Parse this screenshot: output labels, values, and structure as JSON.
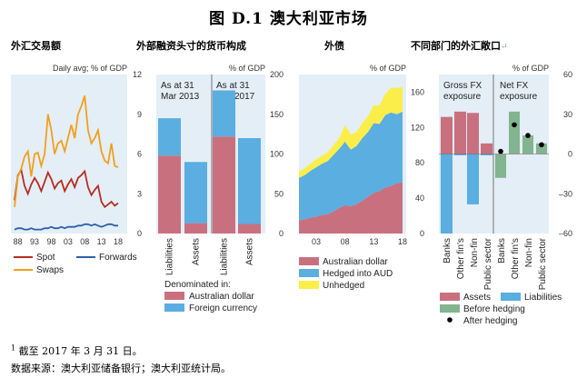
{
  "title": "图 D.1 澳大利亚市场",
  "headers": [
    "外汇交易额",
    "外部融资头寸的货币构成",
    "外债",
    "不同部门的外汇敞口"
  ],
  "header_mark": "↵",
  "footnote": "截至 2017 年 3 月 31 日。",
  "footnote_marker": "1",
  "source": "数据来源：澳大利亚储备银行；澳大利亚统计局。",
  "colors": {
    "spot": "#b52d1f",
    "swaps": "#f0a01c",
    "forwards": "#2f5fa8",
    "panel_bg": "#e4eef7",
    "rose": "#c9707f",
    "blue": "#5aaee0",
    "yellow": "#fbee4b",
    "green": "#82b48f",
    "dot": "#000000"
  },
  "chart_data": [
    {
      "type": "line",
      "unit_label": "Daily avg; % of GDP",
      "x": [
        1987,
        1988,
        1989,
        1990,
        1991,
        1992,
        1993,
        1994,
        1995,
        1996,
        1997,
        1998,
        1999,
        2000,
        2001,
        2002,
        2003,
        2004,
        2005,
        2006,
        2007,
        2008,
        2009,
        2010,
        2011,
        2012,
        2013,
        2014,
        2015,
        2016,
        2017,
        2018
      ],
      "xticks": [
        "88",
        "93",
        "98",
        "03",
        "08",
        "13",
        "18"
      ],
      "ylim": [
        0,
        12
      ],
      "yticks": [
        0,
        3,
        6,
        9,
        12
      ],
      "series": [
        {
          "name": "Spot",
          "values": [
            2.5,
            4.4,
            4.8,
            3.6,
            3.0,
            3.7,
            4.2,
            3.8,
            3.2,
            3.9,
            4.6,
            4.1,
            3.4,
            3.8,
            4.0,
            3.2,
            3.7,
            4.1,
            3.5,
            4.2,
            4.4,
            4.7,
            3.5,
            2.9,
            3.3,
            3.6,
            2.4,
            2.0,
            2.2,
            2.4,
            2.1,
            2.3
          ]
        },
        {
          "name": "Swaps",
          "values": [
            2.0,
            4.3,
            4.9,
            5.8,
            6.2,
            4.3,
            6.0,
            6.1,
            5.1,
            6.0,
            9.0,
            7.8,
            6.0,
            6.8,
            7.0,
            6.2,
            7.2,
            8.2,
            7.2,
            9.0,
            9.6,
            10.4,
            7.8,
            6.8,
            7.2,
            7.8,
            6.2,
            5.5,
            5.3,
            6.8,
            5.1,
            5.0
          ]
        },
        {
          "name": "Forwards",
          "values": [
            0.3,
            0.4,
            0.4,
            0.3,
            0.3,
            0.4,
            0.3,
            0.3,
            0.3,
            0.4,
            0.4,
            0.5,
            0.4,
            0.4,
            0.5,
            0.4,
            0.5,
            0.5,
            0.5,
            0.6,
            0.6,
            0.7,
            0.7,
            0.6,
            0.7,
            0.6,
            0.5,
            0.6,
            0.7,
            0.7,
            0.6,
            0.6
          ]
        }
      ]
    },
    {
      "type": "bar",
      "unit_label": "% of GDP",
      "ylim": [
        0,
        200
      ],
      "yticks": [
        0,
        50,
        100,
        150,
        200
      ],
      "groups": [
        "As at 31 Mar 2013",
        "As at 31 Mar 2017"
      ],
      "categories": [
        "Liabilities",
        "Assets",
        "Liabilities",
        "Assets"
      ],
      "series": [
        {
          "name": "Australian dollar",
          "values": [
            98,
            13,
            122,
            12
          ]
        },
        {
          "name": "Foreign currency",
          "values": [
            47,
            77,
            58,
            108
          ]
        }
      ],
      "legend_title": "Denominated in:"
    },
    {
      "type": "area",
      "unit_label": "% of GDP",
      "x": [
        2000,
        2001,
        2002,
        2003,
        2004,
        2005,
        2006,
        2007,
        2008,
        2009,
        2010,
        2011,
        2012,
        2013,
        2014,
        2015,
        2016,
        2017,
        2018
      ],
      "xticks": [
        "03",
        "08",
        "13",
        "18"
      ],
      "ylim": [
        0,
        180
      ],
      "yticks": [
        0,
        40,
        80,
        120,
        160
      ],
      "series": [
        {
          "name": "Australian dollar",
          "values": [
            15,
            16,
            18,
            19,
            21,
            22,
            25,
            29,
            32,
            31,
            33,
            37,
            42,
            46,
            48,
            52,
            54,
            57,
            58
          ]
        },
        {
          "name": "Hedged into AUD",
          "values": [
            48,
            50,
            53,
            56,
            58,
            60,
            64,
            67,
            72,
            64,
            66,
            71,
            73,
            79,
            76,
            82,
            83,
            78,
            80
          ]
        },
        {
          "name": "Unhedged",
          "values": [
            7,
            8,
            8,
            9,
            9,
            10,
            11,
            12,
            19,
            17,
            16,
            17,
            18,
            20,
            21,
            24,
            28,
            30,
            28
          ]
        }
      ]
    },
    {
      "type": "bar",
      "unit_label": "% of GDP",
      "ylim": [
        -60,
        60
      ],
      "yticks": [
        -60,
        -30,
        0,
        30,
        60
      ],
      "groups": [
        "Gross FX exposure",
        "Net FX exposure"
      ],
      "categories": [
        "Banks",
        "Other fin's",
        "Non-fin",
        "Public sector"
      ],
      "gross": {
        "assets": [
          28,
          32,
          31,
          8
        ],
        "liabilities": [
          -60,
          -1,
          -38,
          -1
        ]
      },
      "net": {
        "before_hedging": [
          -18,
          32,
          14,
          8
        ],
        "after_hedging": [
          2,
          22,
          14,
          7
        ]
      },
      "legend": [
        "Assets",
        "Liabilities",
        "Before hedging",
        "After hedging"
      ]
    }
  ]
}
